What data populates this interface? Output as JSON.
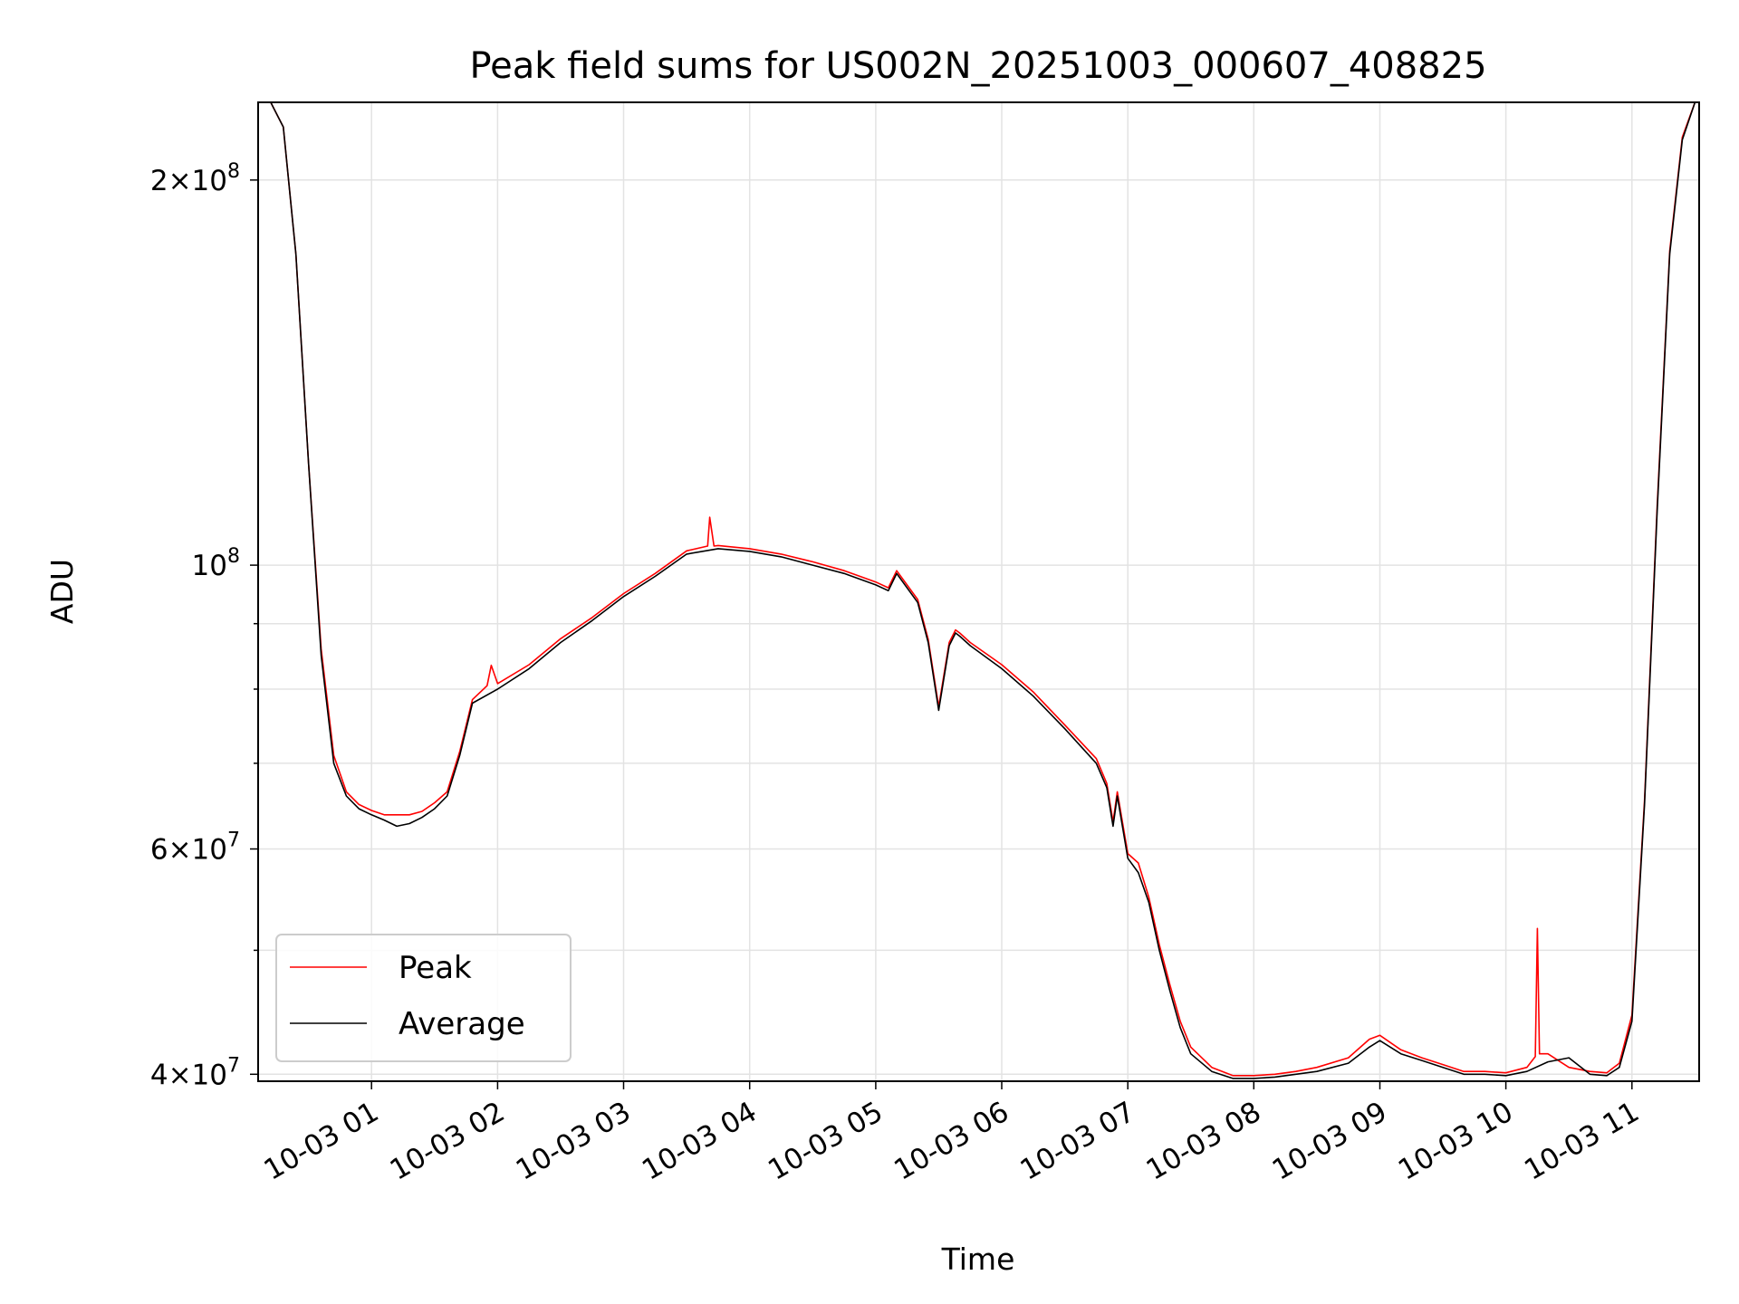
{
  "chart_data": {
    "type": "line",
    "title": "Peak field sums for US002N_20251003_000607_408825",
    "xlabel": "Time",
    "ylabel": "ADU",
    "yscale": "log",
    "ylim": [
      39500000,
      230000000
    ],
    "xlim": [
      "2025-10-03 00:06",
      "2025-10-03 11:32"
    ],
    "grid": true,
    "legend": {
      "placement": "lower left",
      "entries": [
        "Peak",
        "Average"
      ]
    },
    "x_ticks": [
      "10-03 01",
      "10-03 02",
      "10-03 03",
      "10-03 04",
      "10-03 05",
      "10-03 06",
      "10-03 07",
      "10-03 08",
      "10-03 09",
      "10-03 10",
      "10-03 11"
    ],
    "y_ticks": [
      {
        "value": 200000000,
        "base": "2",
        "exp": "8"
      },
      {
        "value": 100000000,
        "base": "",
        "exp": "8"
      },
      {
        "value": 60000000,
        "base": "6",
        "exp": "7"
      },
      {
        "value": 40000000,
        "base": "4",
        "exp": "7"
      }
    ],
    "y_minor_ticks": [
      50000000,
      70000000,
      80000000,
      90000000
    ],
    "x_minor_ticks": [],
    "series": [
      {
        "name": "Average",
        "color": "#000000",
        "x": [
          "2025-10-03 00:06",
          "2025-10-03 00:12",
          "2025-10-03 00:18",
          "2025-10-03 00:24",
          "2025-10-03 00:30",
          "2025-10-03 00:36",
          "2025-10-03 00:42",
          "2025-10-03 00:48",
          "2025-10-03 00:54",
          "2025-10-03 01:00",
          "2025-10-03 01:06",
          "2025-10-03 01:12",
          "2025-10-03 01:18",
          "2025-10-03 01:24",
          "2025-10-03 01:30",
          "2025-10-03 01:36",
          "2025-10-03 01:42",
          "2025-10-03 01:48",
          "2025-10-03 02:00",
          "2025-10-03 02:15",
          "2025-10-03 02:30",
          "2025-10-03 02:45",
          "2025-10-03 03:00",
          "2025-10-03 03:15",
          "2025-10-03 03:30",
          "2025-10-03 03:45",
          "2025-10-03 04:00",
          "2025-10-03 04:15",
          "2025-10-03 04:30",
          "2025-10-03 04:45",
          "2025-10-03 05:00",
          "2025-10-03 05:06",
          "2025-10-03 05:10",
          "2025-10-03 05:20",
          "2025-10-03 05:25",
          "2025-10-03 05:30",
          "2025-10-03 05:35",
          "2025-10-03 05:38",
          "2025-10-03 05:40",
          "2025-10-03 05:45",
          "2025-10-03 06:00",
          "2025-10-03 06:15",
          "2025-10-03 06:30",
          "2025-10-03 06:45",
          "2025-10-03 06:50",
          "2025-10-03 06:53",
          "2025-10-03 06:55",
          "2025-10-03 07:00",
          "2025-10-03 07:05",
          "2025-10-03 07:10",
          "2025-10-03 07:15",
          "2025-10-03 07:20",
          "2025-10-03 07:25",
          "2025-10-03 07:30",
          "2025-10-03 07:40",
          "2025-10-03 07:50",
          "2025-10-03 08:00",
          "2025-10-03 08:10",
          "2025-10-03 08:20",
          "2025-10-03 08:30",
          "2025-10-03 08:45",
          "2025-10-03 08:55",
          "2025-10-03 09:00",
          "2025-10-03 09:10",
          "2025-10-03 09:20",
          "2025-10-03 09:30",
          "2025-10-03 09:40",
          "2025-10-03 09:50",
          "2025-10-03 10:00",
          "2025-10-03 10:10",
          "2025-10-03 10:20",
          "2025-10-03 10:30",
          "2025-10-03 10:40",
          "2025-10-03 10:48",
          "2025-10-03 10:54",
          "2025-10-03 11:00",
          "2025-10-03 11:06",
          "2025-10-03 11:12",
          "2025-10-03 11:18",
          "2025-10-03 11:24",
          "2025-10-03 11:30"
        ],
        "y": [
          230000000,
          230000000,
          220000000,
          175000000,
          120000000,
          85000000,
          70000000,
          66000000,
          64500000,
          63800000,
          63200000,
          62500000,
          62800000,
          63500000,
          64500000,
          66000000,
          71000000,
          78000000,
          80000000,
          83000000,
          87000000,
          90500000,
          94500000,
          98000000,
          102000000,
          103000000,
          102500000,
          101500000,
          100000000,
          98500000,
          96500000,
          95500000,
          98500000,
          93500000,
          87000000,
          77000000,
          86500000,
          88500000,
          88000000,
          86500000,
          83000000,
          79000000,
          74500000,
          70000000,
          67000000,
          62500000,
          66000000,
          59000000,
          57500000,
          54500000,
          50000000,
          46500000,
          43500000,
          41500000,
          40200000,
          39700000,
          39700000,
          39800000,
          40000000,
          40200000,
          40800000,
          42000000,
          42500000,
          41500000,
          41000000,
          40500000,
          40000000,
          40000000,
          39900000,
          40200000,
          40900000,
          41200000,
          40000000,
          39900000,
          40500000,
          44000000,
          65000000,
          110000000,
          175000000,
          215000000,
          230000000
        ]
      },
      {
        "name": "Peak",
        "color": "#ff0000",
        "x": [
          "2025-10-03 00:06",
          "2025-10-03 00:12",
          "2025-10-03 00:18",
          "2025-10-03 00:24",
          "2025-10-03 00:30",
          "2025-10-03 00:36",
          "2025-10-03 00:42",
          "2025-10-03 00:48",
          "2025-10-03 00:54",
          "2025-10-03 01:00",
          "2025-10-03 01:06",
          "2025-10-03 01:12",
          "2025-10-03 01:18",
          "2025-10-03 01:24",
          "2025-10-03 01:30",
          "2025-10-03 01:36",
          "2025-10-03 01:42",
          "2025-10-03 01:48",
          "2025-10-03 01:55",
          "2025-10-03 01:57",
          "2025-10-03 02:00",
          "2025-10-03 02:15",
          "2025-10-03 02:30",
          "2025-10-03 02:45",
          "2025-10-03 03:00",
          "2025-10-03 03:15",
          "2025-10-03 03:30",
          "2025-10-03 03:40",
          "2025-10-03 03:41",
          "2025-10-03 03:43",
          "2025-10-03 03:45",
          "2025-10-03 04:00",
          "2025-10-03 04:15",
          "2025-10-03 04:30",
          "2025-10-03 04:45",
          "2025-10-03 05:00",
          "2025-10-03 05:06",
          "2025-10-03 05:10",
          "2025-10-03 05:20",
          "2025-10-03 05:25",
          "2025-10-03 05:30",
          "2025-10-03 05:35",
          "2025-10-03 05:38",
          "2025-10-03 05:40",
          "2025-10-03 05:45",
          "2025-10-03 06:00",
          "2025-10-03 06:15",
          "2025-10-03 06:30",
          "2025-10-03 06:45",
          "2025-10-03 06:50",
          "2025-10-03 06:53",
          "2025-10-03 06:55",
          "2025-10-03 07:00",
          "2025-10-03 07:05",
          "2025-10-03 07:10",
          "2025-10-03 07:15",
          "2025-10-03 07:20",
          "2025-10-03 07:25",
          "2025-10-03 07:30",
          "2025-10-03 07:40",
          "2025-10-03 07:50",
          "2025-10-03 08:00",
          "2025-10-03 08:10",
          "2025-10-03 08:20",
          "2025-10-03 08:30",
          "2025-10-03 08:45",
          "2025-10-03 08:55",
          "2025-10-03 09:00",
          "2025-10-03 09:10",
          "2025-10-03 09:20",
          "2025-10-03 09:30",
          "2025-10-03 09:40",
          "2025-10-03 09:50",
          "2025-10-03 10:00",
          "2025-10-03 10:10",
          "2025-10-03 10:14",
          "2025-10-03 10:15",
          "2025-10-03 10:16",
          "2025-10-03 10:20",
          "2025-10-03 10:30",
          "2025-10-03 10:40",
          "2025-10-03 10:48",
          "2025-10-03 10:54",
          "2025-10-03 11:00",
          "2025-10-03 11:06",
          "2025-10-03 11:12",
          "2025-10-03 11:18",
          "2025-10-03 11:24",
          "2025-10-03 11:30"
        ],
        "y": [
          230000000,
          230000000,
          220000000,
          175000000,
          120000000,
          86000000,
          71000000,
          66500000,
          65000000,
          64300000,
          63800000,
          63800000,
          63800000,
          64200000,
          65200000,
          66500000,
          71500000,
          78500000,
          80500000,
          83500000,
          80800000,
          83600000,
          87600000,
          91000000,
          95000000,
          98500000,
          102600000,
          103500000,
          109000000,
          103500000,
          103600000,
          103000000,
          102000000,
          100600000,
          99000000,
          97000000,
          96000000,
          99000000,
          94000000,
          87500000,
          77500000,
          87000000,
          89000000,
          88500000,
          87000000,
          83600000,
          79600000,
          75000000,
          70600000,
          67500000,
          63000000,
          66500000,
          59500000,
          58500000,
          55000000,
          50500000,
          47000000,
          44000000,
          42000000,
          40500000,
          39900000,
          39900000,
          40000000,
          40200000,
          40500000,
          41200000,
          42600000,
          42900000,
          41800000,
          41200000,
          40700000,
          40200000,
          40200000,
          40100000,
          40500000,
          41300000,
          52000000,
          41500000,
          41500000,
          40500000,
          40200000,
          40100000,
          40800000,
          44500000,
          65500000,
          111000000,
          176000000,
          216000000,
          230000000
        ]
      }
    ]
  }
}
